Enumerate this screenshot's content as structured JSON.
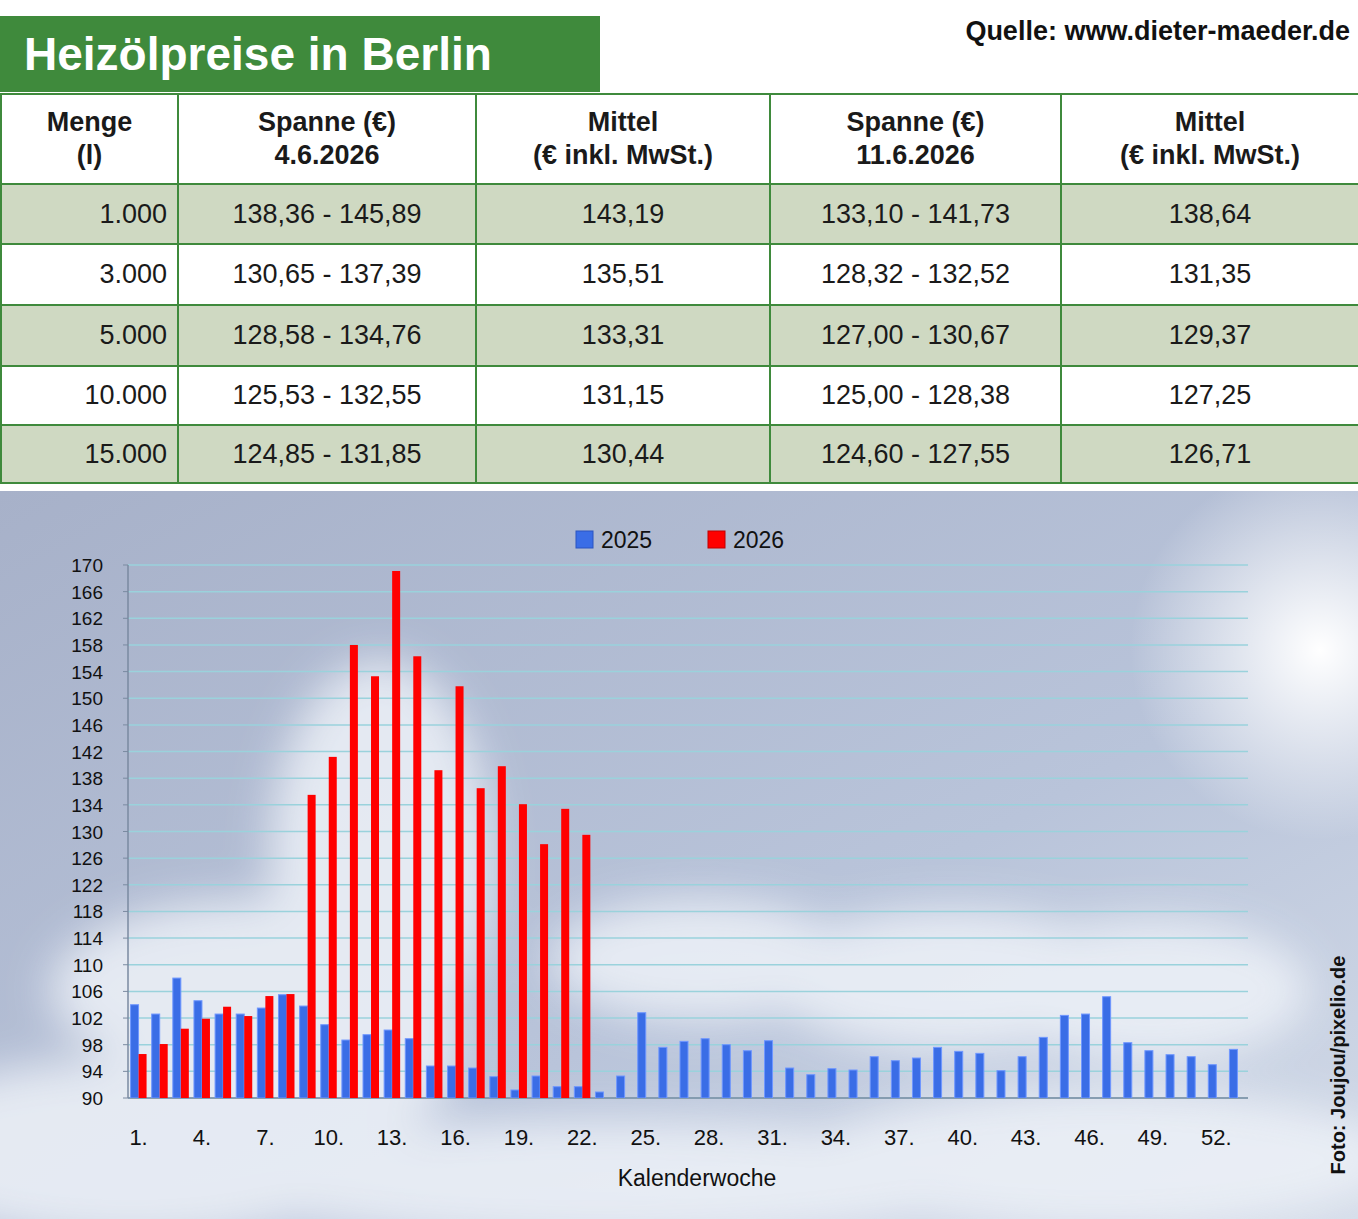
{
  "header": {
    "title": "Heizölpreise in Berlin",
    "source": "Quelle: www.dieter-maeder.de"
  },
  "table": {
    "header": [
      [
        "Menge",
        "(l)"
      ],
      [
        "Spanne (€)",
        "4.6.2026"
      ],
      [
        "Mittel",
        "(€ inkl. MwSt.)"
      ],
      [
        "Spanne (€)",
        "11.6.2026"
      ],
      [
        "Mittel",
        "(€ inkl. MwSt.)"
      ]
    ],
    "rows": [
      [
        "1.000",
        "138,36 - 145,89",
        "143,19",
        "133,10 - 141,73",
        "138,64"
      ],
      [
        "3.000",
        "130,65 - 137,39",
        "135,51",
        "128,32 - 132,52",
        "131,35"
      ],
      [
        "5.000",
        "128,58 - 134,76",
        "133,31",
        "127,00 - 130,67",
        "129,37"
      ],
      [
        "10.000",
        "125,53 - 132,55",
        "131,15",
        "125,00 - 128,38",
        "127,25"
      ],
      [
        "15.000",
        "124,85 - 131,85",
        "130,44",
        "124,60 - 127,55",
        "126,71"
      ]
    ]
  },
  "chart_data": {
    "type": "bar",
    "x_label": "Kalenderwoche",
    "categories": [
      "1.",
      null,
      null,
      "4.",
      null,
      null,
      "7.",
      null,
      null,
      "10.",
      null,
      null,
      "13.",
      null,
      null,
      "16.",
      null,
      null,
      "19.",
      null,
      null,
      "22.",
      null,
      null,
      "25.",
      null,
      null,
      "28.",
      null,
      null,
      "31.",
      null,
      null,
      "34.",
      null,
      null,
      "37.",
      null,
      null,
      "40.",
      null,
      null,
      "43.",
      null,
      null,
      "46.",
      null,
      null,
      "49.",
      null,
      null,
      "52.",
      null
    ],
    "series": [
      {
        "name": "2025",
        "color": "#3a6de6",
        "values": [
          104,
          102.6,
          108,
          104.6,
          102.6,
          102.6,
          103.5,
          105.5,
          103.8,
          101,
          98.7,
          99.5,
          100.2,
          98.9,
          94.8,
          94.8,
          94.5,
          93.2,
          91.2,
          93.3,
          91.7,
          91.7,
          90.9,
          93.3,
          102.8,
          97.6,
          98.5,
          98.9,
          98,
          97.1,
          98.6,
          94.5,
          93.5,
          94.4,
          94.2,
          96.2,
          95.6,
          96,
          97.6,
          97,
          96.7,
          94.1,
          96.2,
          99.1,
          102.4,
          102.6,
          105.2,
          98.3,
          97.1,
          96.5,
          96.2,
          95,
          97.3
        ]
      },
      {
        "name": "2026",
        "color": "#ff0000",
        "values": [
          96.6,
          98.1,
          100.4,
          101.9,
          103.7,
          102.3,
          105.3,
          105.6,
          135.5,
          141.2,
          158,
          153.3,
          169.1,
          156.3,
          139.2,
          151.8,
          136.5,
          139.8,
          134.1,
          128.1,
          133.4,
          129.5,
          null,
          null,
          null,
          null,
          null,
          null,
          null,
          null,
          null,
          null,
          null,
          null,
          null,
          null,
          null,
          null,
          null,
          null,
          null,
          null,
          null,
          null,
          null,
          null,
          null,
          null,
          null,
          null,
          null,
          null,
          null
        ]
      }
    ],
    "ylim": [
      90,
      170
    ],
    "yticks": [
      90,
      94,
      98,
      102,
      106,
      110,
      114,
      118,
      122,
      126,
      130,
      134,
      138,
      142,
      146,
      150,
      154,
      158,
      162,
      166,
      170
    ],
    "grid": true,
    "legend": "top"
  },
  "photo_credit": "Foto: Joujou/pixelio.de"
}
